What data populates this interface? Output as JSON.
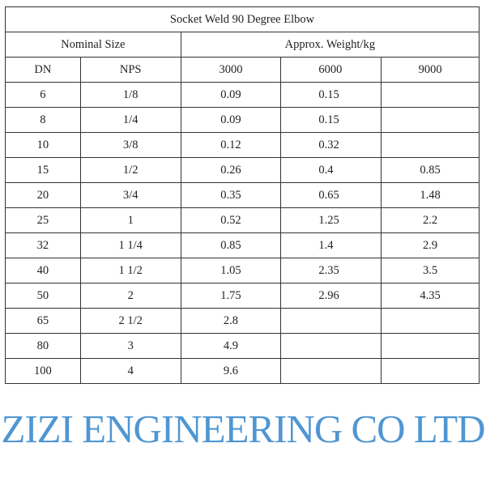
{
  "title": "Socket Weld 90 Degree Elbow",
  "group_headers": {
    "nominal": "Nominal Size",
    "weight": "Approx. Weight/kg"
  },
  "columns": [
    "DN",
    "NPS",
    "3000",
    "6000",
    "9000"
  ],
  "rows": [
    [
      "6",
      "1/8",
      "0.09",
      "0.15",
      ""
    ],
    [
      "8",
      "1/4",
      "0.09",
      "0.15",
      ""
    ],
    [
      "10",
      "3/8",
      "0.12",
      "0.32",
      ""
    ],
    [
      "15",
      "1/2",
      "0.26",
      "0.4",
      "0.85"
    ],
    [
      "20",
      "3/4",
      "0.35",
      "0.65",
      "1.48"
    ],
    [
      "25",
      "1",
      "0.52",
      "1.25",
      "2.2"
    ],
    [
      "32",
      "1 1/4",
      "0.85",
      "1.4",
      "2.9"
    ],
    [
      "40",
      "1 1/2",
      "1.05",
      "2.35",
      "3.5"
    ],
    [
      "50",
      "2",
      "1.75",
      "2.96",
      "4.35"
    ],
    [
      "65",
      "2 1/2",
      "2.8",
      "",
      ""
    ],
    [
      "80",
      "3",
      "4.9",
      "",
      ""
    ],
    [
      "100",
      "4",
      "9.6",
      "",
      ""
    ]
  ],
  "watermark": "ZIZI ENGINEERING CO LTD",
  "colors": {
    "watermark": "#5096d2",
    "border": "#333333"
  }
}
